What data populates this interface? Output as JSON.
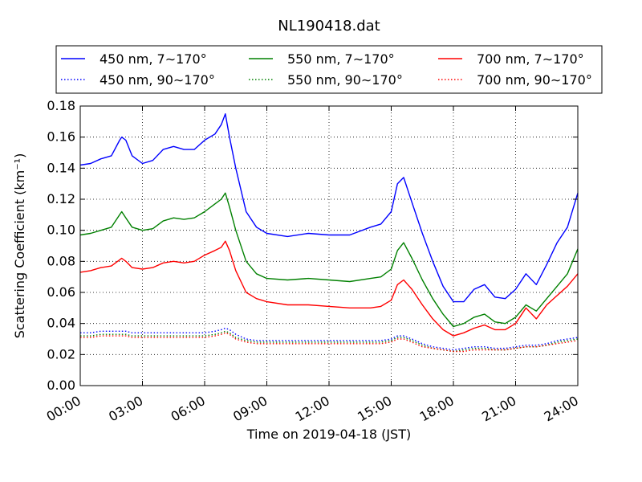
{
  "chart_data": {
    "type": "line",
    "title": "NL190418.dat",
    "xlabel": "Time on 2019-04-18 (JST)",
    "ylabel": "Scattering Coefficient (km⁻¹)",
    "xlim": [
      0,
      24
    ],
    "ylim": [
      0,
      0.18
    ],
    "grid": true,
    "legend_position": "top",
    "x_ticks": [
      0,
      3,
      6,
      9,
      12,
      15,
      18,
      21,
      24
    ],
    "x_tick_labels": [
      "00:00",
      "03:00",
      "06:00",
      "09:00",
      "12:00",
      "15:00",
      "18:00",
      "21:00",
      "24:00"
    ],
    "y_ticks": [
      0,
      0.02,
      0.04,
      0.06,
      0.08,
      0.1,
      0.12,
      0.14,
      0.16,
      0.18
    ],
    "y_tick_labels": [
      "0.00",
      "0.02",
      "0.04",
      "0.06",
      "0.08",
      "0.10",
      "0.12",
      "0.14",
      "0.16",
      "0.18"
    ],
    "x": [
      0,
      0.5,
      1,
      1.5,
      1.9,
      2,
      2.2,
      2.5,
      3,
      3.5,
      4,
      4.5,
      5,
      5.5,
      6,
      6.5,
      6.8,
      7,
      7.2,
      7.5,
      8,
      8.5,
      9,
      10,
      11,
      12,
      13,
      14,
      14.5,
      15,
      15.3,
      15.6,
      16,
      16.5,
      17,
      17.5,
      18,
      18.5,
      19,
      19.5,
      20,
      20.5,
      21,
      21.5,
      22,
      22.5,
      23,
      23.5,
      24
    ],
    "series": [
      {
        "name": "450 nm, 7∼170°",
        "color": "#0000ff",
        "style": "solid",
        "values": [
          0.142,
          0.143,
          0.146,
          0.148,
          0.158,
          0.16,
          0.158,
          0.148,
          0.143,
          0.145,
          0.152,
          0.154,
          0.152,
          0.152,
          0.158,
          0.162,
          0.168,
          0.175,
          0.16,
          0.14,
          0.112,
          0.102,
          0.098,
          0.096,
          0.098,
          0.097,
          0.097,
          0.102,
          0.104,
          0.112,
          0.13,
          0.134,
          0.118,
          0.098,
          0.08,
          0.064,
          0.054,
          0.054,
          0.062,
          0.065,
          0.057,
          0.056,
          0.062,
          0.072,
          0.065,
          0.078,
          0.092,
          0.102,
          0.124
        ]
      },
      {
        "name": "550 nm, 7∼170°",
        "color": "#008000",
        "style": "solid",
        "values": [
          0.097,
          0.098,
          0.1,
          0.102,
          0.11,
          0.112,
          0.108,
          0.102,
          0.1,
          0.101,
          0.106,
          0.108,
          0.107,
          0.108,
          0.112,
          0.117,
          0.12,
          0.124,
          0.115,
          0.1,
          0.08,
          0.072,
          0.069,
          0.068,
          0.069,
          0.068,
          0.067,
          0.069,
          0.07,
          0.075,
          0.087,
          0.092,
          0.082,
          0.068,
          0.056,
          0.046,
          0.038,
          0.04,
          0.044,
          0.046,
          0.041,
          0.04,
          0.044,
          0.052,
          0.048,
          0.056,
          0.064,
          0.072,
          0.088
        ]
      },
      {
        "name": "700 nm, 7∼170°",
        "color": "#ff0000",
        "style": "solid",
        "values": [
          0.073,
          0.074,
          0.076,
          0.077,
          0.081,
          0.082,
          0.08,
          0.076,
          0.075,
          0.076,
          0.079,
          0.08,
          0.079,
          0.08,
          0.084,
          0.087,
          0.089,
          0.093,
          0.087,
          0.074,
          0.06,
          0.056,
          0.054,
          0.052,
          0.052,
          0.051,
          0.05,
          0.05,
          0.051,
          0.055,
          0.065,
          0.068,
          0.062,
          0.052,
          0.043,
          0.036,
          0.032,
          0.034,
          0.037,
          0.039,
          0.036,
          0.036,
          0.04,
          0.05,
          0.043,
          0.052,
          0.058,
          0.064,
          0.072
        ]
      },
      {
        "name": "450 nm, 90∼170°",
        "color": "#0000ff",
        "style": "dotted",
        "values": [
          0.034,
          0.034,
          0.035,
          0.035,
          0.035,
          0.035,
          0.035,
          0.034,
          0.034,
          0.034,
          0.034,
          0.034,
          0.034,
          0.034,
          0.034,
          0.035,
          0.036,
          0.037,
          0.036,
          0.033,
          0.03,
          0.029,
          0.029,
          0.029,
          0.029,
          0.029,
          0.029,
          0.029,
          0.029,
          0.03,
          0.032,
          0.032,
          0.03,
          0.027,
          0.025,
          0.024,
          0.023,
          0.024,
          0.025,
          0.025,
          0.024,
          0.024,
          0.025,
          0.026,
          0.026,
          0.027,
          0.029,
          0.03,
          0.031
        ]
      },
      {
        "name": "550 nm, 90∼170°",
        "color": "#008000",
        "style": "dotted",
        "values": [
          0.032,
          0.032,
          0.033,
          0.033,
          0.033,
          0.033,
          0.033,
          0.032,
          0.032,
          0.032,
          0.032,
          0.032,
          0.032,
          0.032,
          0.032,
          0.033,
          0.034,
          0.035,
          0.034,
          0.031,
          0.029,
          0.028,
          0.028,
          0.028,
          0.028,
          0.028,
          0.028,
          0.028,
          0.028,
          0.029,
          0.031,
          0.031,
          0.029,
          0.026,
          0.024,
          0.023,
          0.022,
          0.023,
          0.024,
          0.024,
          0.023,
          0.023,
          0.024,
          0.025,
          0.025,
          0.026,
          0.028,
          0.029,
          0.03
        ]
      },
      {
        "name": "700 nm, 90∼170°",
        "color": "#ff0000",
        "style": "dotted",
        "values": [
          0.031,
          0.031,
          0.032,
          0.032,
          0.032,
          0.032,
          0.032,
          0.031,
          0.031,
          0.031,
          0.031,
          0.031,
          0.031,
          0.031,
          0.031,
          0.032,
          0.033,
          0.034,
          0.033,
          0.03,
          0.028,
          0.027,
          0.027,
          0.027,
          0.027,
          0.027,
          0.027,
          0.027,
          0.027,
          0.028,
          0.03,
          0.03,
          0.028,
          0.025,
          0.024,
          0.023,
          0.022,
          0.022,
          0.023,
          0.023,
          0.023,
          0.023,
          0.024,
          0.025,
          0.025,
          0.026,
          0.027,
          0.028,
          0.029
        ]
      }
    ]
  }
}
